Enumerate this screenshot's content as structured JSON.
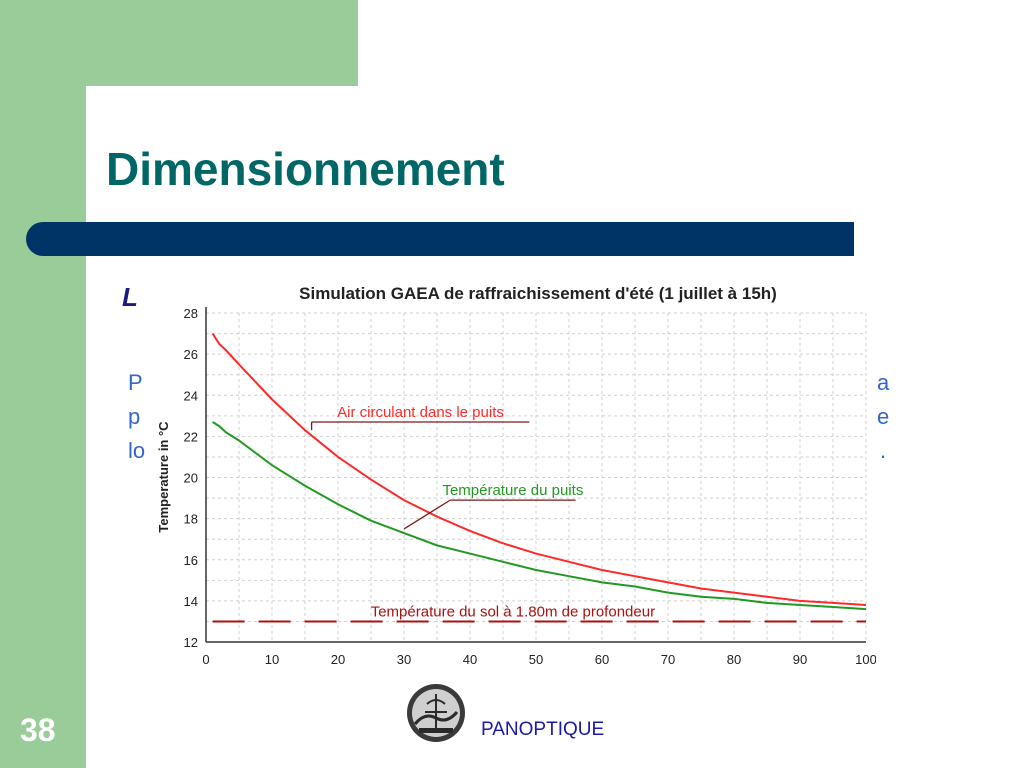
{
  "slide": {
    "title": "Dimensionnement",
    "number": "38",
    "footer_brand": "PANOPTIQUE",
    "background_text": {
      "heading": "L",
      "left_lines": [
        "P",
        "p",
        "lo"
      ],
      "right_lines": [
        "a",
        "e",
        "."
      ]
    },
    "colors": {
      "green_band": "#99cc99",
      "title_bar": "#003366",
      "title_text": "#006666"
    }
  },
  "chart_data": {
    "type": "line",
    "title": "Simulation GAEA de raffraichissement d'été (1 juillet à 15h)",
    "xlabel": "",
    "ylabel": "Temperature in °C",
    "xlim": [
      0,
      100
    ],
    "ylim": [
      12,
      28
    ],
    "x_ticks": [
      "0",
      "10",
      "20",
      "30",
      "40",
      "50",
      "60",
      "70",
      "80",
      "90",
      "100"
    ],
    "y_ticks": [
      "12",
      "14",
      "16",
      "18",
      "20",
      "22",
      "24",
      "26",
      "28"
    ],
    "grid": true,
    "series": [
      {
        "name": "Air circulant dans le puits",
        "color": "#ff2a2a",
        "x": [
          1,
          2,
          3,
          5,
          10,
          15,
          20,
          25,
          30,
          35,
          40,
          45,
          50,
          55,
          60,
          65,
          70,
          75,
          80,
          85,
          90,
          95,
          100
        ],
        "values": [
          27.0,
          26.5,
          26.2,
          25.5,
          23.8,
          22.3,
          21.0,
          19.9,
          18.9,
          18.1,
          17.4,
          16.8,
          16.3,
          15.9,
          15.5,
          15.2,
          14.9,
          14.6,
          14.4,
          14.2,
          14.0,
          13.9,
          13.8
        ]
      },
      {
        "name": "Température du puits",
        "color": "#229922",
        "x": [
          1,
          2,
          3,
          5,
          10,
          15,
          20,
          25,
          30,
          35,
          40,
          45,
          50,
          55,
          60,
          65,
          70,
          75,
          80,
          85,
          90,
          95,
          100
        ],
        "values": [
          22.7,
          22.5,
          22.2,
          21.8,
          20.6,
          19.6,
          18.7,
          17.9,
          17.3,
          16.7,
          16.3,
          15.9,
          15.5,
          15.2,
          14.9,
          14.7,
          14.4,
          14.2,
          14.1,
          13.9,
          13.8,
          13.7,
          13.6
        ]
      },
      {
        "name": "Température du sol à 1.80m de profondeur",
        "color": "#aa1111",
        "x": [
          1,
          100
        ],
        "values": [
          13.0,
          13.0
        ]
      }
    ],
    "annotations": [
      {
        "text": "Air circulant dans le puits",
        "series": 0,
        "point_x": 16,
        "point_y": 22.3,
        "line_x0": 16,
        "line_x1": 49,
        "line_y": 22.7
      },
      {
        "text": "Température du puits",
        "series": 1,
        "point_x": 30,
        "point_y": 17.5,
        "line_x0": 37,
        "line_x1": 56,
        "line_y": 18.9
      },
      {
        "text": "Température du sol à 1.80m de profondeur",
        "series": 2,
        "point_x": 1,
        "point_y": 13.0,
        "line_x0": 18,
        "line_x1": 75,
        "line_y": 13.0
      }
    ]
  }
}
